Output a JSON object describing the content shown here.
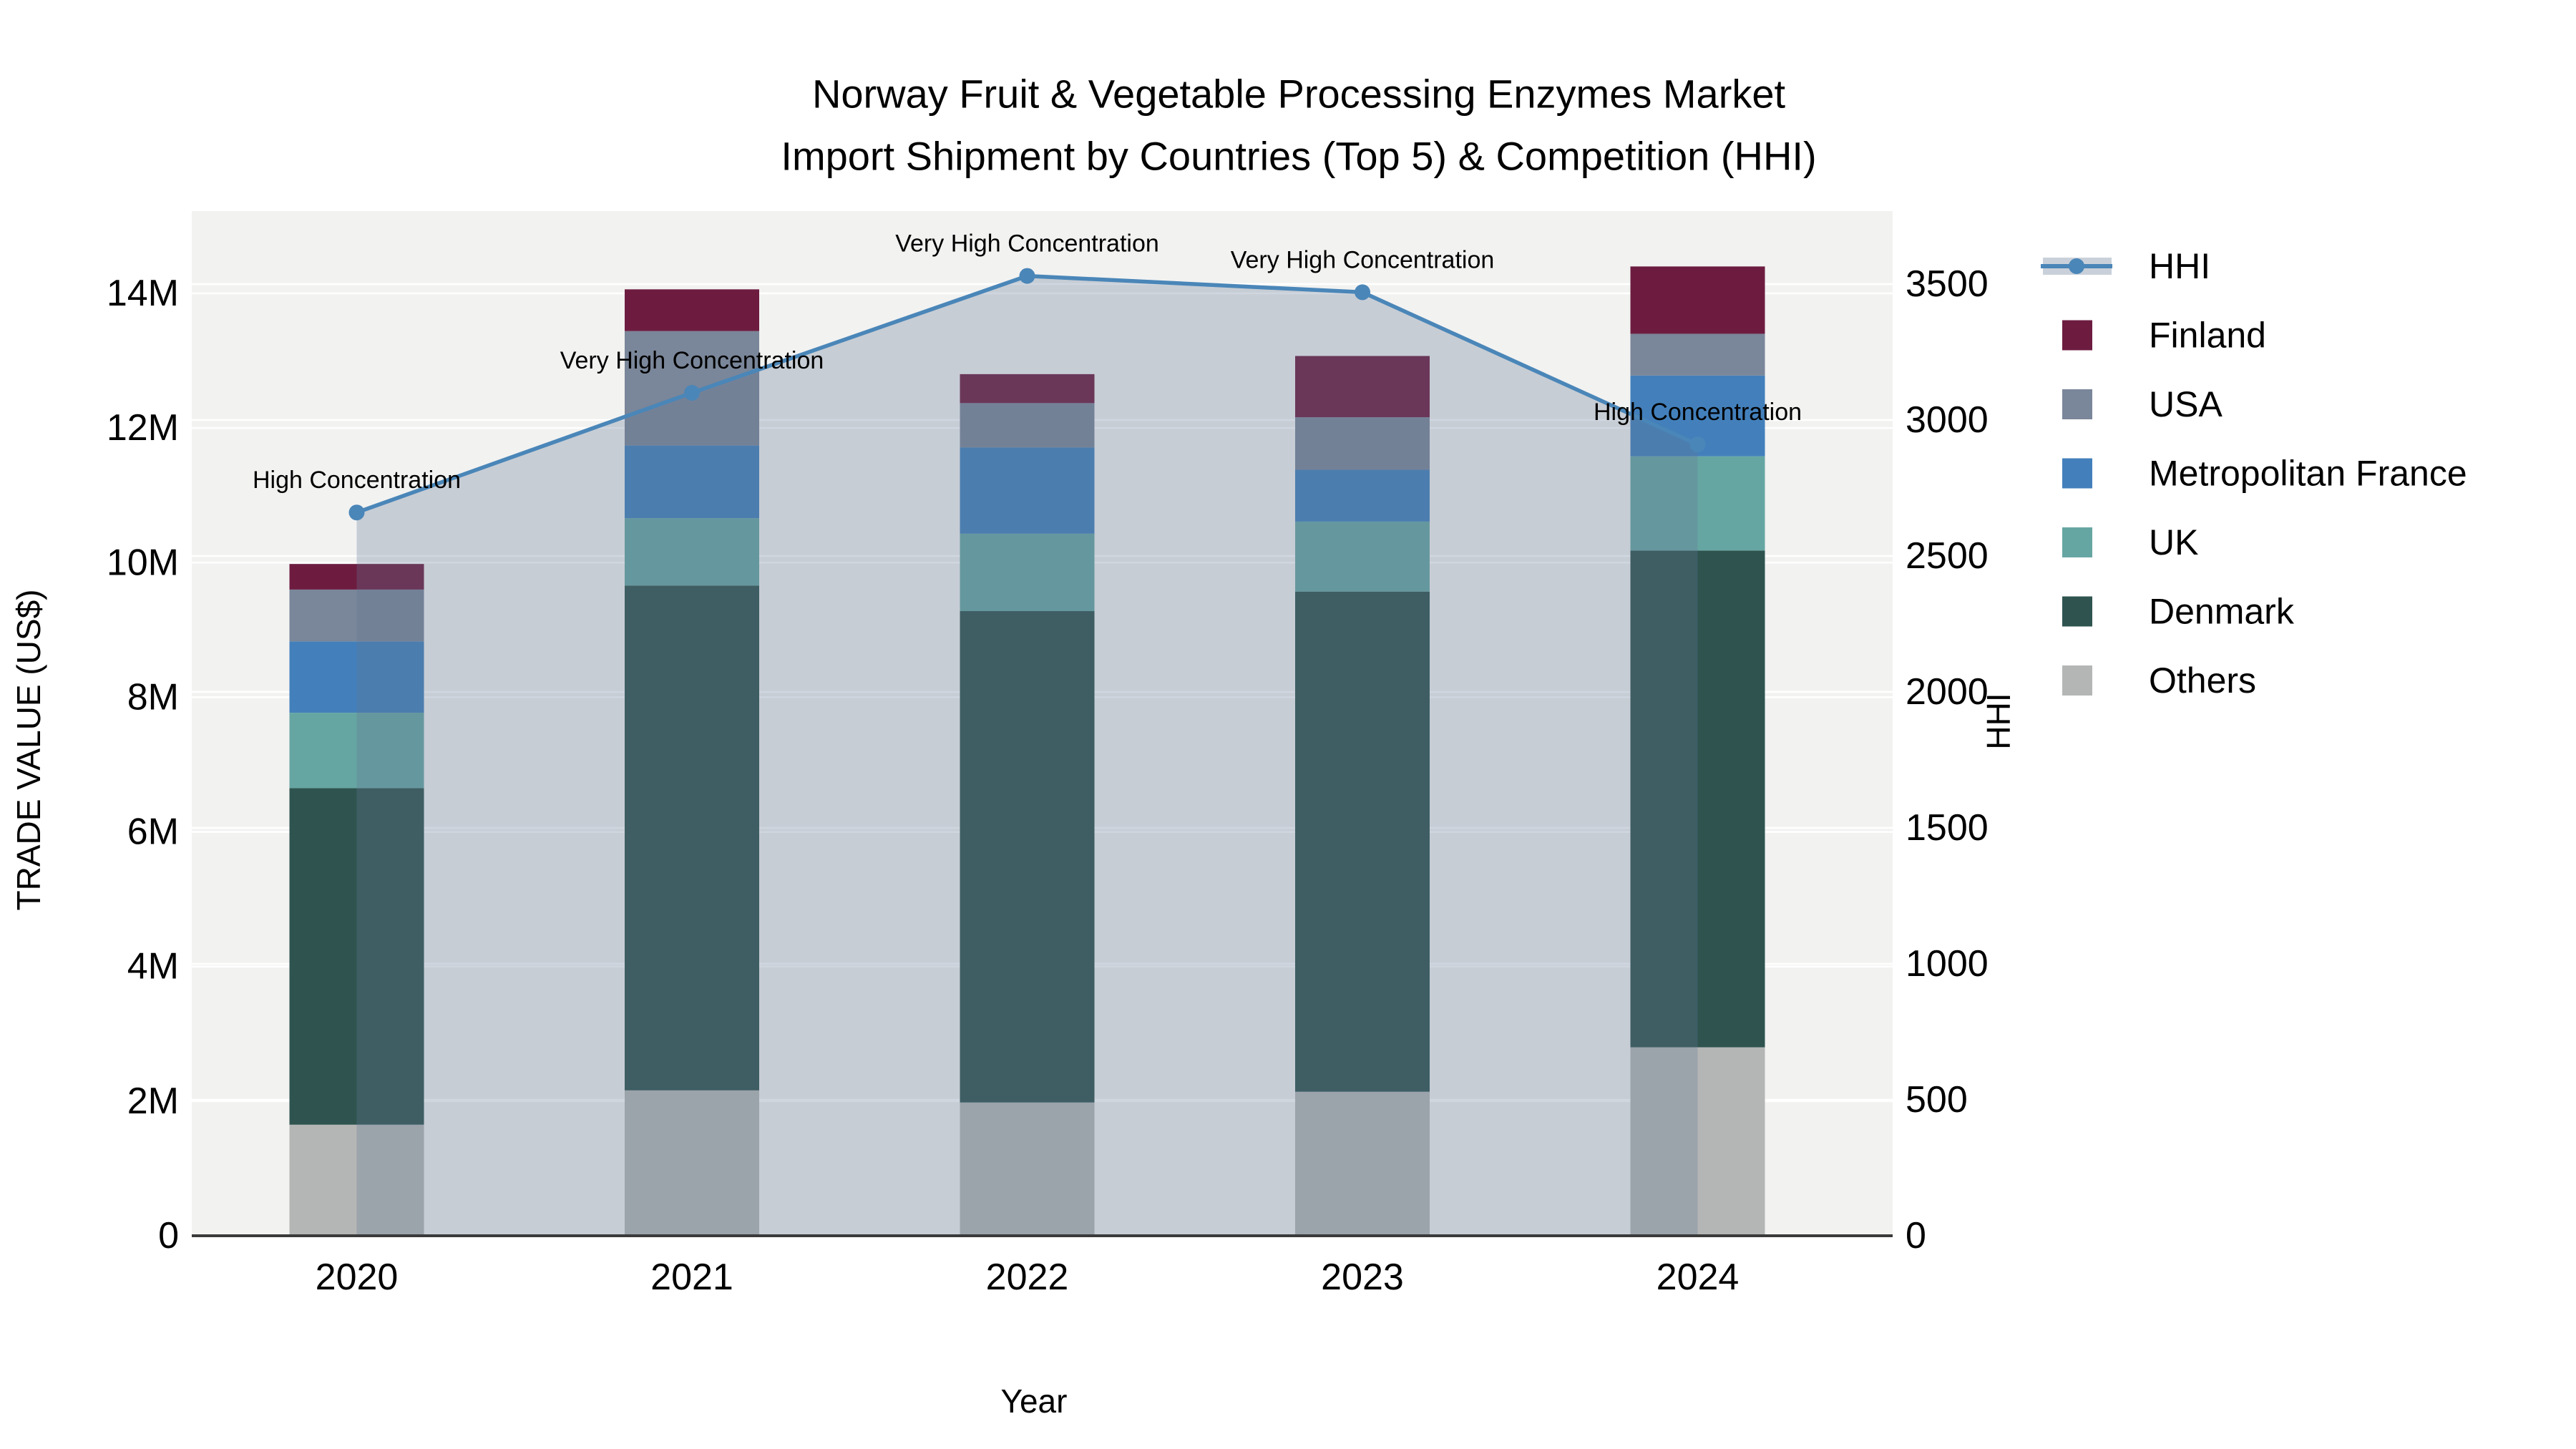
{
  "title": {
    "line1": "Norway Fruit & Vegetable Processing Enzymes Market",
    "line2": "Import Shipment by Countries (Top 5) & Competition (HHI)"
  },
  "axes": {
    "x_label": "Year",
    "y_left_label": "TRADE VALUE (US$)",
    "y_right_label": "HHI",
    "x_tick_labels": [
      "2020",
      "2021",
      "2022",
      "2023",
      "2024"
    ],
    "y_left_tick_labels": [
      "0",
      "2M",
      "4M",
      "6M",
      "8M",
      "10M",
      "12M",
      "14M"
    ],
    "y_left_tick_values": [
      0,
      2,
      4,
      6,
      8,
      10,
      12,
      14
    ],
    "y_right_tick_labels": [
      "0",
      "500",
      "1000",
      "1500",
      "2000",
      "2500",
      "3000",
      "3500"
    ],
    "y_right_tick_values": [
      0,
      500,
      1000,
      1500,
      2000,
      2500,
      3000,
      3500
    ]
  },
  "chart_data": {
    "type": "combo-stacked-bar-line",
    "categories": [
      "2020",
      "2021",
      "2022",
      "2023",
      "2024"
    ],
    "unit": "million US$ (trade value), index points (HHI)",
    "series": [
      {
        "name": "Others",
        "color": "#B4B6B5",
        "values": [
          1.65,
          2.16,
          1.98,
          2.14,
          2.8
        ]
      },
      {
        "name": "Denmark",
        "color": "#2F5450",
        "values": [
          5.0,
          7.5,
          7.3,
          7.43,
          7.38
        ]
      },
      {
        "name": "UK",
        "color": "#66A6A2",
        "values": [
          1.12,
          1.0,
          1.15,
          1.04,
          1.4
        ]
      },
      {
        "name": "Metropolitan France",
        "color": "#4380BB",
        "values": [
          1.06,
          1.08,
          1.28,
          0.77,
          1.2
        ]
      },
      {
        "name": "USA",
        "color": "#7A8699",
        "values": [
          0.77,
          1.7,
          0.66,
          0.78,
          0.62
        ]
      },
      {
        "name": "Finland",
        "color": "#6D1C40",
        "values": [
          0.38,
          0.62,
          0.43,
          0.91,
          1.0
        ]
      }
    ],
    "bar_totals": [
      9.98,
      14.06,
      12.8,
      13.07,
      14.4
    ],
    "line_series": {
      "name": "HHI",
      "color": "#4A86B8",
      "area_fill_color": "rgba(100,118,150,0.30)",
      "values": [
        2660,
        3100,
        3530,
        3470,
        2910
      ]
    },
    "annotations": [
      {
        "category": "2020",
        "text": "High Concentration"
      },
      {
        "category": "2021",
        "text": "Very High Concentration"
      },
      {
        "category": "2022",
        "text": "Very High Concentration"
      },
      {
        "category": "2023",
        "text": "Very High Concentration"
      },
      {
        "category": "2024",
        "text": "High Concentration"
      }
    ],
    "ylim_left": [
      0,
      15.2
    ],
    "ylim_right": [
      0,
      3768
    ],
    "grid": true,
    "legend_position": "right",
    "plot_background_color": "#F2F2F1",
    "gridline_color": "#FFFFFF",
    "axis_line_color": "#3A3A3A"
  },
  "legend": {
    "items": [
      {
        "label": "HHI",
        "type": "line",
        "color": "#4A86B8",
        "band_color": "#C9D0DA"
      },
      {
        "label": "Finland",
        "type": "patch",
        "color": "#6D1C40"
      },
      {
        "label": "USA",
        "type": "patch",
        "color": "#7A8699"
      },
      {
        "label": "Metropolitan France",
        "type": "patch",
        "color": "#4380BB"
      },
      {
        "label": "UK",
        "type": "patch",
        "color": "#66A6A2"
      },
      {
        "label": "Denmark",
        "type": "patch",
        "color": "#2F5450"
      },
      {
        "label": "Others",
        "type": "patch",
        "color": "#B4B6B5"
      }
    ]
  }
}
